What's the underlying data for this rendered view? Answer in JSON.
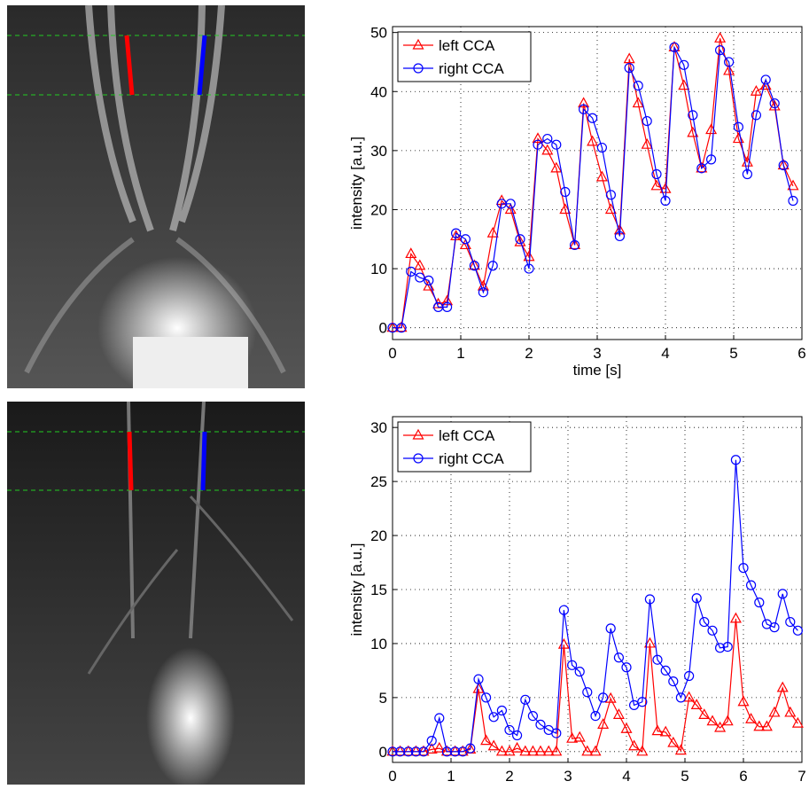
{
  "chart_data": [
    {
      "type": "line",
      "xlabel": "time [s]",
      "ylabel": "intensity [a.u.]",
      "x": [
        0,
        0.13,
        0.27,
        0.4,
        0.53,
        0.67,
        0.8,
        0.93,
        1.07,
        1.2,
        1.33,
        1.47,
        1.6,
        1.73,
        1.87,
        2,
        2.13,
        2.27,
        2.4,
        2.53,
        2.67,
        2.8,
        2.93,
        3.07,
        3.2,
        3.33,
        3.47,
        3.6,
        3.73,
        3.87,
        4,
        4.13,
        4.27,
        4.4,
        4.53,
        4.67,
        4.8,
        4.93,
        5.07,
        5.2,
        5.33,
        5.47,
        5.6,
        5.73,
        5.87
      ],
      "series": [
        {
          "name": "left CCA",
          "color": "#ff0000",
          "marker": "triangle",
          "values": [
            0,
            0,
            12.5,
            10.5,
            7,
            4,
            4.5,
            15.5,
            14,
            10.5,
            7,
            16,
            21.5,
            20,
            14.5,
            12,
            32,
            30,
            27,
            20,
            14,
            38,
            31.5,
            25.5,
            20,
            16.5,
            45.5,
            38,
            31,
            24,
            23.5,
            47.5,
            41,
            33,
            27,
            33.5,
            49,
            43.5,
            32,
            28,
            40,
            41,
            37.5,
            27.5,
            24
          ]
        },
        {
          "name": "right CCA",
          "color": "#0000ff",
          "marker": "circle",
          "values": [
            0,
            0,
            9.5,
            8.5,
            8,
            3.5,
            3.5,
            16,
            15,
            10.5,
            6,
            10.5,
            21,
            21,
            15,
            10,
            31,
            32,
            31,
            23,
            14,
            37,
            35.5,
            30.5,
            22.5,
            15.5,
            44,
            41,
            35,
            26,
            21.5,
            47.5,
            44.5,
            36,
            27,
            28.5,
            47,
            45,
            34,
            26,
            36,
            42,
            38,
            27.5,
            21.5
          ]
        }
      ],
      "xlim": [
        0,
        6
      ],
      "ylim": [
        -2,
        51
      ],
      "xticks": [
        0,
        1,
        2,
        3,
        4,
        5,
        6
      ],
      "yticks": [
        0,
        10,
        20,
        30,
        40,
        50
      ],
      "grid": true,
      "legend": "upper left"
    },
    {
      "type": "line",
      "xlabel": "time [s]",
      "ylabel": "intensity [a.u.]",
      "x": [
        0,
        0.13,
        0.27,
        0.4,
        0.53,
        0.67,
        0.8,
        0.93,
        1.07,
        1.2,
        1.33,
        1.47,
        1.6,
        1.73,
        1.87,
        2,
        2.13,
        2.27,
        2.4,
        2.53,
        2.67,
        2.8,
        2.93,
        3.07,
        3.2,
        3.33,
        3.47,
        3.6,
        3.73,
        3.87,
        4,
        4.13,
        4.27,
        4.4,
        4.53,
        4.67,
        4.8,
        4.93,
        5.07,
        5.2,
        5.33,
        5.47,
        5.6,
        5.73,
        5.87,
        6,
        6.13,
        6.27,
        6.4,
        6.53,
        6.67,
        6.8,
        6.93
      ],
      "series": [
        {
          "name": "left CCA",
          "color": "#ff0000",
          "marker": "triangle",
          "values": [
            0,
            0,
            0,
            0,
            0,
            0.2,
            0.3,
            0,
            0,
            0,
            0.2,
            5.8,
            1,
            0.5,
            0,
            0,
            0.3,
            0,
            0,
            0,
            0,
            0,
            9.9,
            1.2,
            1.3,
            0,
            0,
            2.5,
            4.9,
            3.4,
            2.1,
            0.5,
            0,
            10,
            1.9,
            1.8,
            0.8,
            0.1,
            5,
            4.3,
            3.4,
            2.8,
            2.2,
            2.8,
            12.3,
            4.6,
            3,
            2.3,
            2.3,
            3.6,
            5.9,
            3.6,
            2.6
          ]
        },
        {
          "name": "right CCA",
          "color": "#0000ff",
          "marker": "circle",
          "values": [
            0,
            0,
            0,
            0,
            0,
            1,
            3.1,
            0,
            0,
            0,
            0.3,
            6.7,
            5,
            3.2,
            3.8,
            2,
            1.5,
            4.8,
            3.3,
            2.5,
            2,
            1.7,
            13.1,
            8,
            7.4,
            5.5,
            3.3,
            5,
            11.4,
            8.7,
            7.8,
            4.3,
            4.6,
            14.1,
            8.5,
            7.5,
            6.5,
            5,
            7,
            14.2,
            12,
            11.2,
            9.6,
            9.7,
            27,
            17,
            15.4,
            13.8,
            11.8,
            11.5,
            14.6,
            12,
            11.2
          ]
        }
      ],
      "xlim": [
        0,
        7
      ],
      "ylim": [
        -1,
        31
      ],
      "xticks": [
        0,
        1,
        2,
        3,
        4,
        5,
        6,
        7
      ],
      "yticks": [
        0,
        5,
        10,
        15,
        20,
        25,
        30
      ],
      "grid": true,
      "legend": "upper left"
    }
  ]
}
